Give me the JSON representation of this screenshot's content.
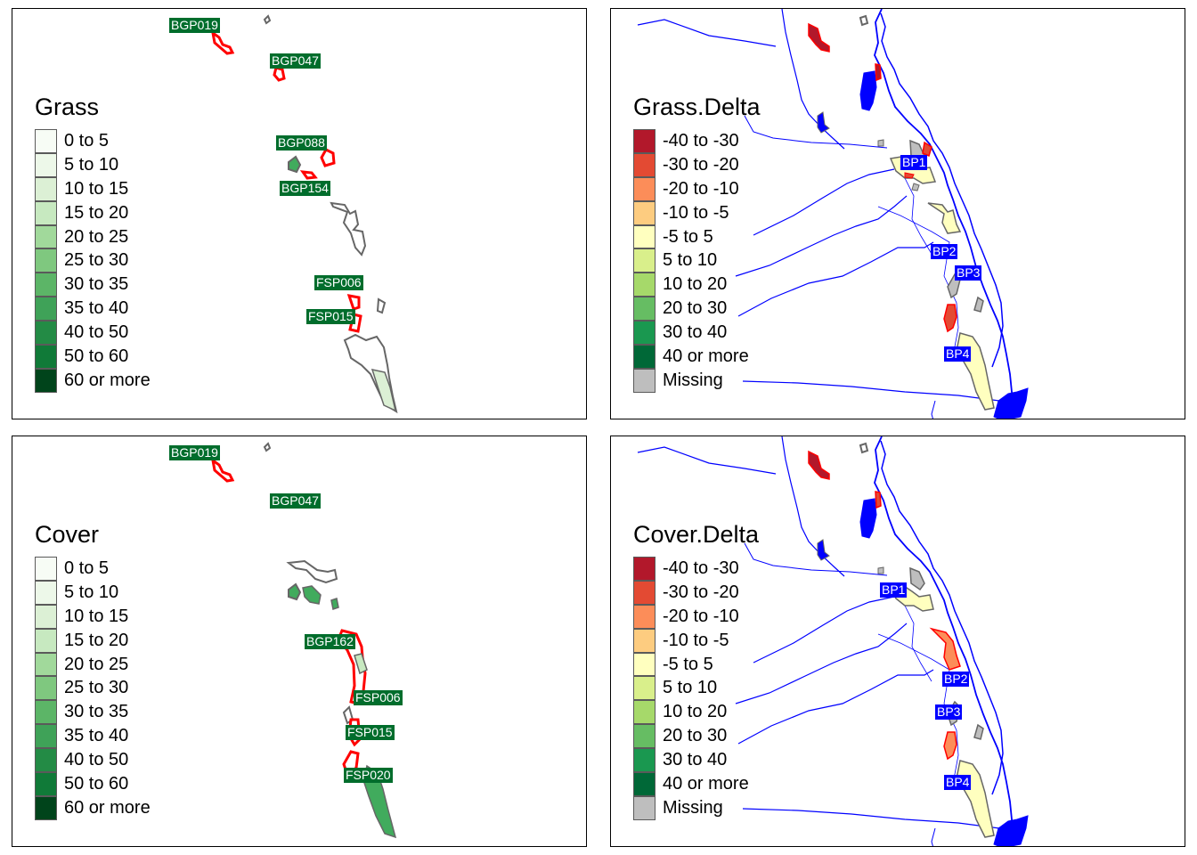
{
  "legend_scales": {
    "level": {
      "labels": [
        "0 to 5",
        "5 to 10",
        "10 to 15",
        "15 to 20",
        "20 to 25",
        "25 to 30",
        "30 to 35",
        "35 to 40",
        "40 to 50",
        "50 to 60",
        "60 or more"
      ],
      "colors": [
        "#f7fcf5",
        "#edf8e9",
        "#dcf0d5",
        "#c7e9c0",
        "#a1d99b",
        "#7fc87f",
        "#5cb567",
        "#3fa258",
        "#238b45",
        "#107a38",
        "#00441b"
      ]
    },
    "delta": {
      "labels": [
        "-40 to -30",
        "-30 to -20",
        "-20 to -10",
        "-10 to -5",
        "-5 to 5",
        "5 to 10",
        "10 to 20",
        "20 to 30",
        "30 to 40",
        "40 or more",
        "Missing"
      ],
      "colors": [
        "#b2182b",
        "#e34a33",
        "#fc8d59",
        "#fdcc80",
        "#ffffbf",
        "#d9ef8b",
        "#a6d96a",
        "#66bd63",
        "#1a9850",
        "#006837",
        "#bebebe"
      ]
    }
  },
  "panels": {
    "grass": {
      "legend_title": "Grass",
      "labels": [
        "BGP019",
        "BGP047",
        "BGP088",
        "BGP154",
        "FSP006",
        "FSP015"
      ]
    },
    "grass_delta": {
      "legend_title": "Grass.Delta",
      "labels": [
        "BP1",
        "BP2",
        "BP3",
        "BP4"
      ]
    },
    "cover": {
      "legend_title": "Cover",
      "labels": [
        "BGP019",
        "BGP047",
        "BGP162",
        "FSP006",
        "FSP015",
        "FSP020"
      ]
    },
    "cover_delta": {
      "legend_title": "Cover.Delta",
      "labels": [
        "BP1",
        "BP2",
        "BP3",
        "BP4"
      ]
    }
  },
  "map_colors": {
    "highlight_outline": "#ff0000",
    "plot_outline": "#666666",
    "river": "#0000ff",
    "water": "#0000ff",
    "label_level_bg": "#006d2c",
    "label_delta_bg": "#0000ff"
  }
}
